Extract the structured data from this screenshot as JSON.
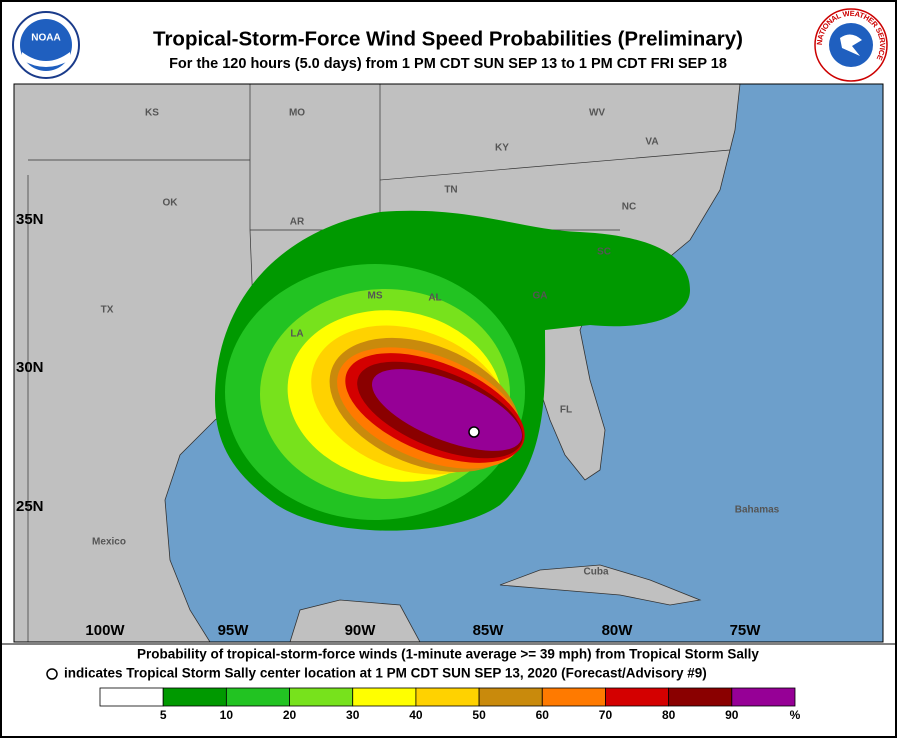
{
  "header": {
    "title": "Tropical-Storm-Force Wind Speed Probabilities (Preliminary)",
    "subtitle": "For the 120 hours (5.0 days) from 1 PM CDT SUN SEP 13 to 1 PM CDT FRI SEP 18",
    "left_logo": "NOAA",
    "right_logo": "NATIONAL WEATHER SERVICE"
  },
  "map": {
    "place_labels": [
      "KS",
      "MO",
      "WV",
      "VA",
      "KY",
      "TN",
      "OK",
      "AR",
      "NC",
      "SC",
      "MS",
      "AL",
      "GA",
      "TX",
      "LA",
      "FL",
      "Bahamas",
      "Mexico",
      "Cuba"
    ],
    "lat_labels": [
      "35N",
      "30N",
      "25N"
    ],
    "lon_labels": [
      "100W",
      "95W",
      "90W",
      "85W",
      "80W",
      "75W"
    ]
  },
  "caption": {
    "line1": "Probability of tropical-storm-force winds (1-minute average >= 39 mph) from Tropical Storm Sally",
    "line2": "indicates Tropical Storm Sally center location at 1 PM CDT SUN SEP 13, 2020 (Forecast/Advisory #9)"
  },
  "legend": {
    "bins": [
      5,
      10,
      20,
      30,
      40,
      50,
      60,
      70,
      80,
      90
    ],
    "unit": "%",
    "colors": [
      "#ffffff",
      "#009900",
      "#22c322",
      "#77e21c",
      "#ffff00",
      "#ffd200",
      "#c98a0c",
      "#ff7a00",
      "#d40000",
      "#8a0000",
      "#960096"
    ]
  }
}
